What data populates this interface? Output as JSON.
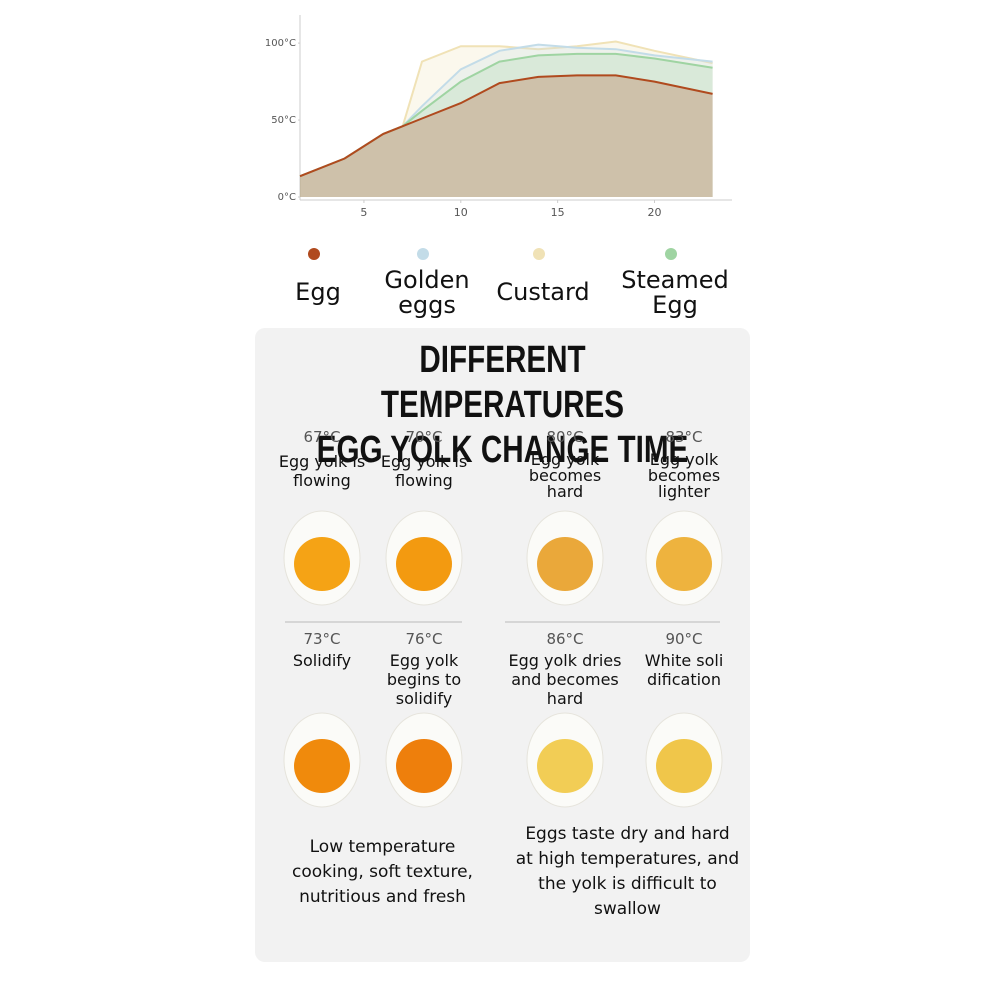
{
  "chart_data": {
    "type": "area",
    "x": [
      1.7,
      4,
      6,
      7,
      8,
      10,
      12,
      14,
      16,
      18,
      20,
      23
    ],
    "series": [
      {
        "name": "Custard",
        "color": "#f0e2b6",
        "values": [
          13.5,
          25,
          41,
          46,
          88,
          98,
          98,
          96,
          98,
          101,
          95,
          87
        ]
      },
      {
        "name": "Golden eggs",
        "color": "#c3dce8",
        "values": [
          13.5,
          25,
          41,
          46,
          59,
          83,
          95,
          99,
          97,
          96,
          92,
          88
        ]
      },
      {
        "name": "Steamed Egg",
        "color": "#9fd4a2",
        "values": [
          13.5,
          25,
          41,
          46,
          56,
          75,
          88,
          92,
          93,
          93,
          90,
          84
        ]
      },
      {
        "name": "Egg",
        "color": "#b04a1e",
        "values": [
          13.5,
          25,
          41,
          46,
          51,
          61,
          74,
          78,
          79,
          79,
          75,
          67
        ]
      }
    ],
    "legend_order": [
      3,
      1,
      0,
      2
    ],
    "xlim": [
      1.7,
      24
    ],
    "xticks": [
      5,
      10,
      15,
      20
    ],
    "ylim": [
      0,
      115
    ],
    "yticks": [
      {
        "value": 0,
        "label": "0°C"
      },
      {
        "value": 50,
        "label": "50°C"
      },
      {
        "value": 100,
        "label": "100°C"
      }
    ]
  },
  "panel": {
    "title_lines": [
      "DIFFERENT TEMPERATURES",
      "EGG YOLK CHANGE TIME"
    ],
    "items": [
      {
        "temp": "67°C",
        "caption": "Egg yolk is flowing"
      },
      {
        "temp": "70°C",
        "caption": "Egg yolk is flowing"
      },
      {
        "temp": "80°C",
        "caption": "Egg yolk becomes hard"
      },
      {
        "temp": "83°C",
        "caption": "Egg yolk becomes lighter"
      },
      {
        "temp": "73°C",
        "caption": "Solidify"
      },
      {
        "temp": "76°C",
        "caption": "Egg yolk begins to solidify"
      },
      {
        "temp": "86°C",
        "caption": "Egg yolk dries and becomes hard"
      },
      {
        "temp": "90°C",
        "caption": "White soli dification"
      }
    ],
    "notes": [
      "Low temperature cooking, soft texture, nutritious and fresh",
      "Eggs taste dry and hard at high temperatures, and the yolk is difficult to swallow"
    ]
  }
}
